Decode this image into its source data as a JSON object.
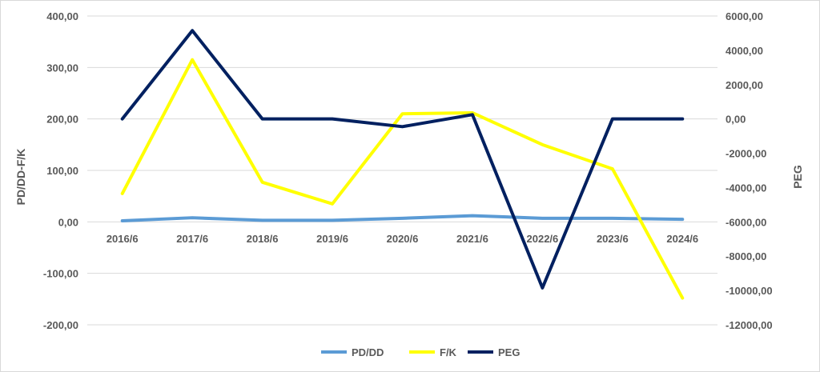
{
  "chart_data": {
    "type": "line",
    "categories": [
      "2016/6",
      "2017/6",
      "2018/6",
      "2019/6",
      "2020/6",
      "2021/6",
      "2022/6",
      "2023/6",
      "2024/6"
    ],
    "y_left": {
      "label": "PD/DD-F/K",
      "range": [
        -200,
        400
      ],
      "ticks": [
        "400,00",
        "300,00",
        "200,00",
        "100,00",
        "0,00",
        "-100,00",
        "-200,00"
      ],
      "tick_values": [
        400,
        300,
        200,
        100,
        0,
        -100,
        -200
      ]
    },
    "y_right": {
      "label": "PEG",
      "range": [
        -12000,
        6000
      ],
      "ticks": [
        "6000,00",
        "4000,00",
        "2000,00",
        "0,00",
        "-2000,00",
        "-4000,00",
        "-6000,00",
        "-8000,00",
        "-10000,00",
        "-12000,00"
      ],
      "tick_values": [
        6000,
        4000,
        2000,
        0,
        -2000,
        -4000,
        -6000,
        -8000,
        -10000,
        -12000
      ]
    },
    "series": [
      {
        "name": "PD/DD",
        "axis": "left",
        "color": "#5b9bd5",
        "values": [
          2,
          8,
          3,
          3,
          7,
          12,
          7,
          7,
          5
        ]
      },
      {
        "name": "F/K",
        "axis": "left",
        "color": "#ffff00",
        "values": [
          55,
          315,
          77,
          35,
          210,
          212,
          150,
          103,
          -148
        ]
      },
      {
        "name": "PEG",
        "axis": "right",
        "color": "#002060",
        "values": [
          0,
          5150,
          0,
          0,
          -450,
          250,
          -9850,
          0,
          0
        ]
      }
    ],
    "legend_position": "bottom",
    "grid": true
  }
}
